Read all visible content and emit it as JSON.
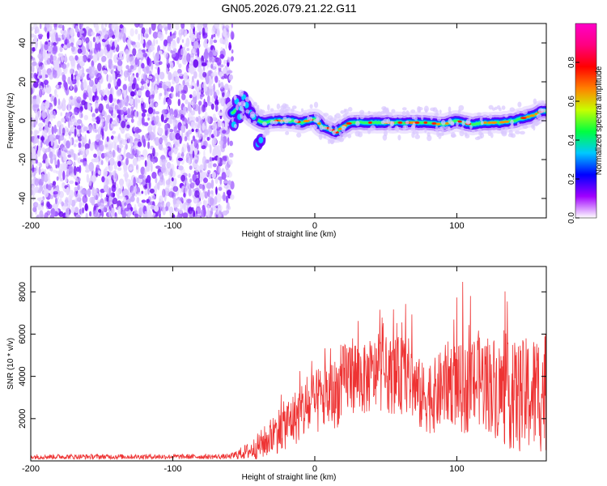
{
  "figure": {
    "title": "GN05.2026.079.21.22.G11"
  },
  "chart_data": [
    {
      "type": "heatmap",
      "name": "spectrogram",
      "xlabel": "Height of straight line (km)",
      "ylabel": "Frequency (Hz)",
      "xlim": [
        -200,
        163
      ],
      "ylim": [
        -50,
        50
      ],
      "xticks": [
        -200,
        -100,
        0,
        100
      ],
      "xtick_labels": [
        "-200",
        "-100",
        "0",
        "100"
      ],
      "yticks": [
        -40,
        -20,
        0,
        20,
        40
      ],
      "ytick_labels": [
        "-40",
        "-20",
        "0",
        "20",
        "40"
      ],
      "noise_region_x": [
        -200,
        -58
      ],
      "signal_trace": {
        "x": [
          -58,
          -50,
          -45,
          -40,
          -35,
          -30,
          -25,
          -20,
          -15,
          -10,
          -5,
          0,
          5,
          10,
          15,
          20,
          25,
          30,
          40,
          50,
          60,
          70,
          80,
          90,
          100,
          110,
          120,
          130,
          140,
          150,
          155,
          160,
          163
        ],
        "frequency": [
          4,
          8,
          3,
          0,
          -1,
          0,
          0,
          0,
          0,
          -1,
          0,
          1,
          -3,
          -4,
          -6,
          -3,
          -1,
          -1,
          -1,
          -1,
          -1,
          -1,
          -1,
          -2,
          0,
          -2,
          -1,
          -1,
          0,
          2,
          3,
          5,
          5
        ]
      },
      "colorbar": {
        "label": "Normalized spectral amplitude",
        "range": [
          0,
          1
        ],
        "ticks": [
          0.0,
          0.2,
          0.4,
          0.6,
          0.8
        ],
        "tick_labels": [
          "0.0",
          "0.2",
          "0.4",
          "0.6",
          "0.8"
        ],
        "colors": [
          "#ffffff",
          "#a000ff",
          "#0000ff",
          "#00c8ff",
          "#00ff40",
          "#c8ff00",
          "#ff8000",
          "#ff0000",
          "#ff0080",
          "#ff00c8"
        ]
      }
    },
    {
      "type": "line",
      "name": "snr",
      "xlabel": "Height of straight line (km)",
      "ylabel": "SNR (10 * v/v)",
      "xlim": [
        -200,
        163
      ],
      "ylim": [
        0,
        9200
      ],
      "xticks": [
        -200,
        -100,
        0,
        100
      ],
      "xtick_labels": [
        "-200",
        "-100",
        "0",
        "100"
      ],
      "yticks": [
        2000,
        4000,
        6000,
        8000
      ],
      "ytick_labels": [
        "2000",
        "4000",
        "6000",
        "8000"
      ],
      "color": "#ee3333",
      "envelope": {
        "x": [
          -200,
          -60,
          -45,
          -35,
          -25,
          -15,
          -5,
          5,
          15,
          25,
          35,
          45,
          55,
          65,
          75,
          85,
          95,
          105,
          115,
          125,
          135,
          145,
          155,
          163
        ],
        "mean": [
          200,
          200,
          500,
          900,
          1500,
          2000,
          2500,
          2900,
          3200,
          4200,
          3800,
          4200,
          4000,
          4100,
          3000,
          3100,
          3800,
          3300,
          3900,
          3600,
          3100,
          3000,
          3200,
          3400
        ],
        "spread": [
          120,
          120,
          450,
          800,
          1100,
          1300,
          1500,
          1600,
          1700,
          1900,
          1700,
          1800,
          1800,
          1900,
          1700,
          1800,
          2000,
          2100,
          2300,
          2400,
          2500,
          2700,
          2900,
          3000
        ]
      }
    }
  ]
}
